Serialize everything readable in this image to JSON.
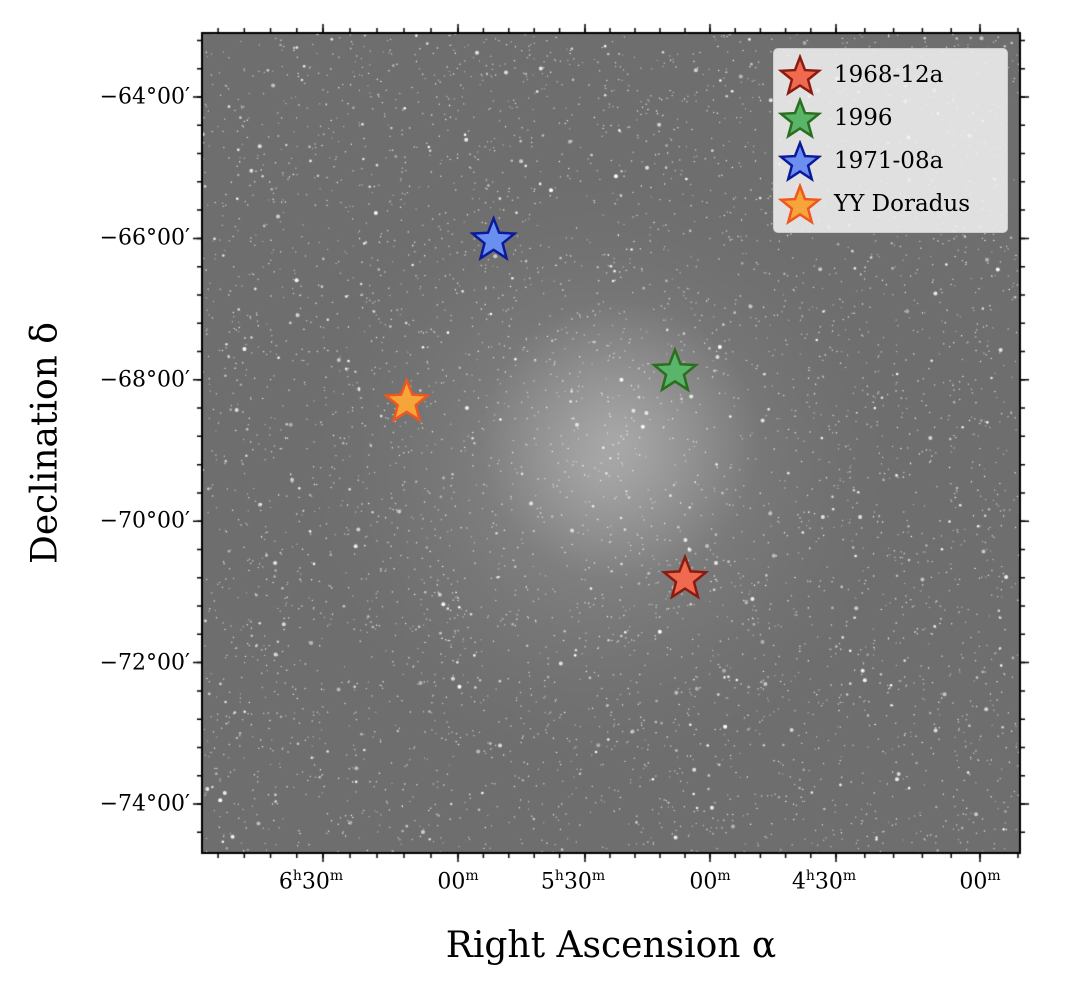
{
  "chart_data": {
    "type": "scatter",
    "background": "grayscale sky image with stars (Large Magellanic Cloud region)",
    "xlabel": "Right Ascension α",
    "ylabel": "Declination δ",
    "x_unit": "hours of right ascension",
    "y_unit": "degrees declination",
    "xlim": [
      6.95,
      3.9
    ],
    "ylim": [
      -74.6,
      -63.1
    ],
    "x_ticks": [
      {
        "value": 6.5,
        "label_main": "6",
        "label_h": "h",
        "label_min": "30",
        "label_m": "m"
      },
      {
        "value": 6.0,
        "label_main": "",
        "label_h": "",
        "label_min": "00",
        "label_m": "m"
      },
      {
        "value": 5.5,
        "label_main": "5",
        "label_h": "h",
        "label_min": "30",
        "label_m": "m"
      },
      {
        "value": 5.0,
        "label_main": "",
        "label_h": "",
        "label_min": "00",
        "label_m": "m"
      },
      {
        "value": 4.5,
        "label_main": "4",
        "label_h": "h",
        "label_min": "30",
        "label_m": "m"
      },
      {
        "value": 4.0,
        "label_main": "",
        "label_h": "",
        "label_min": "00",
        "label_m": "m"
      }
    ],
    "y_ticks": [
      {
        "value": -64,
        "label": "−64°00′"
      },
      {
        "value": -66,
        "label": "−66°00′"
      },
      {
        "value": -68,
        "label": "−68°00′"
      },
      {
        "value": -70,
        "label": "−70°00′"
      },
      {
        "value": -72,
        "label": "−72°00′"
      },
      {
        "value": -74,
        "label": "−74°00′"
      }
    ],
    "grid": false,
    "legend_position": "top-right",
    "marker": "star",
    "series": [
      {
        "name": "1968-12a",
        "x": 5.1,
        "y": -70.79,
        "fill": "#f06a4f",
        "edge": "#8b1a10"
      },
      {
        "name": "1996",
        "x": 5.14,
        "y": -67.86,
        "fill": "#5ab46a",
        "edge": "#2a6e1e"
      },
      {
        "name": "1971-08a",
        "x": 5.86,
        "y": -66.0,
        "fill": "#6b8ff0",
        "edge": "#0a1a9a"
      },
      {
        "name": "YY Doradus",
        "x": 6.19,
        "y": -68.29,
        "fill": "#f5a53a",
        "edge": "#f0561e"
      }
    ]
  }
}
